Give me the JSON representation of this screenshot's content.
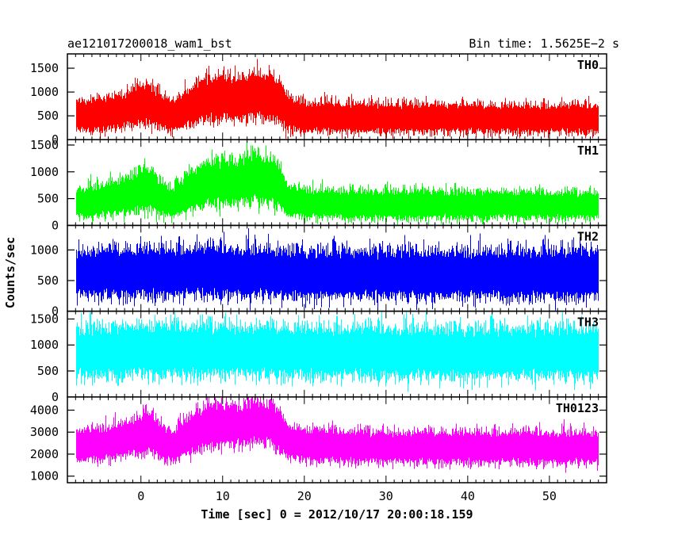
{
  "header": {
    "title": "ae121017200018_wam1_bst",
    "bin_time": "Bin time: 1.5625E−2 s"
  },
  "chart_data": {
    "type": "line",
    "xlabel": "Time [sec] 0 = 2012/10/17 20:00:18.159",
    "ylabel": "Counts/sec",
    "xlim": [
      -9,
      57
    ],
    "xticks": [
      0,
      10,
      20,
      30,
      40,
      50
    ],
    "data_x_range": [
      -8,
      56
    ],
    "bin_width_sec": 0.015625,
    "panels": [
      {
        "name": "TH0",
        "color": "#ff0000",
        "ylim": [
          0,
          1800
        ],
        "yticks": [
          0,
          500,
          1000,
          1500
        ],
        "profile": {
          "x": [
            -8,
            -5,
            -2,
            0,
            1,
            2,
            3,
            4,
            6,
            8,
            10,
            12,
            14,
            15,
            16,
            17,
            18,
            20,
            25,
            30,
            40,
            50,
            56
          ],
          "mean": [
            500,
            530,
            620,
            720,
            780,
            620,
            520,
            480,
            700,
            850,
            880,
            880,
            950,
            900,
            900,
            780,
            550,
            480,
            460,
            450,
            440,
            430,
            430
          ],
          "spread": [
            280,
            300,
            330,
            380,
            400,
            330,
            300,
            280,
            360,
            400,
            400,
            400,
            420,
            400,
            400,
            380,
            300,
            280,
            270,
            270,
            260,
            260,
            260
          ]
        }
      },
      {
        "name": "TH1",
        "color": "#00ff00",
        "ylim": [
          0,
          1600
        ],
        "yticks": [
          0,
          500,
          1000,
          1500
        ],
        "profile": {
          "x": [
            -8,
            -5,
            -2,
            0,
            1,
            2,
            3,
            4,
            6,
            8,
            10,
            12,
            14,
            15,
            16,
            17,
            18,
            20,
            25,
            30,
            40,
            50,
            56
          ],
          "mean": [
            420,
            450,
            560,
            650,
            720,
            560,
            460,
            430,
            640,
            780,
            800,
            800,
            900,
            850,
            850,
            700,
            460,
            410,
            390,
            380,
            380,
            370,
            370
          ],
          "spread": [
            240,
            260,
            300,
            340,
            360,
            300,
            260,
            240,
            330,
            370,
            370,
            370,
            400,
            380,
            380,
            340,
            260,
            240,
            230,
            230,
            230,
            220,
            220
          ]
        }
      },
      {
        "name": "TH2",
        "color": "#0000ff",
        "ylim": [
          0,
          1400
        ],
        "yticks": [
          0,
          500,
          1000
        ],
        "profile": {
          "x": [
            -8,
            0,
            10,
            20,
            30,
            40,
            50,
            56
          ],
          "mean": [
            610,
            630,
            640,
            610,
            600,
            600,
            600,
            600
          ],
          "spread": [
            340,
            350,
            350,
            340,
            340,
            340,
            340,
            340
          ]
        }
      },
      {
        "name": "TH3",
        "color": "#00ffff",
        "ylim": [
          0,
          1650
        ],
        "yticks": [
          0,
          500,
          1000,
          1500
        ],
        "profile": {
          "x": [
            -8,
            0,
            10,
            20,
            30,
            40,
            50,
            56
          ],
          "mean": [
            860,
            880,
            890,
            860,
            850,
            850,
            850,
            850
          ],
          "spread": [
            420,
            430,
            430,
            420,
            420,
            420,
            420,
            420
          ]
        }
      },
      {
        "name": "TH0123",
        "color": "#ff00ff",
        "ylim": [
          700,
          4600
        ],
        "yticks": [
          1000,
          2000,
          3000,
          4000
        ],
        "profile": {
          "x": [
            -8,
            -5,
            -2,
            0,
            1,
            2,
            3,
            4,
            6,
            8,
            10,
            12,
            14,
            15,
            16,
            17,
            18,
            20,
            25,
            30,
            40,
            50,
            56
          ],
          "mean": [
            2400,
            2450,
            2650,
            2900,
            3050,
            2700,
            2450,
            2350,
            2900,
            3250,
            3300,
            3300,
            3500,
            3400,
            3400,
            3050,
            2500,
            2400,
            2350,
            2300,
            2300,
            2280,
            2280
          ],
          "spread": [
            650,
            660,
            700,
            760,
            800,
            720,
            660,
            640,
            760,
            820,
            820,
            820,
            850,
            830,
            830,
            780,
            680,
            650,
            640,
            640,
            640,
            630,
            630
          ]
        }
      }
    ]
  }
}
